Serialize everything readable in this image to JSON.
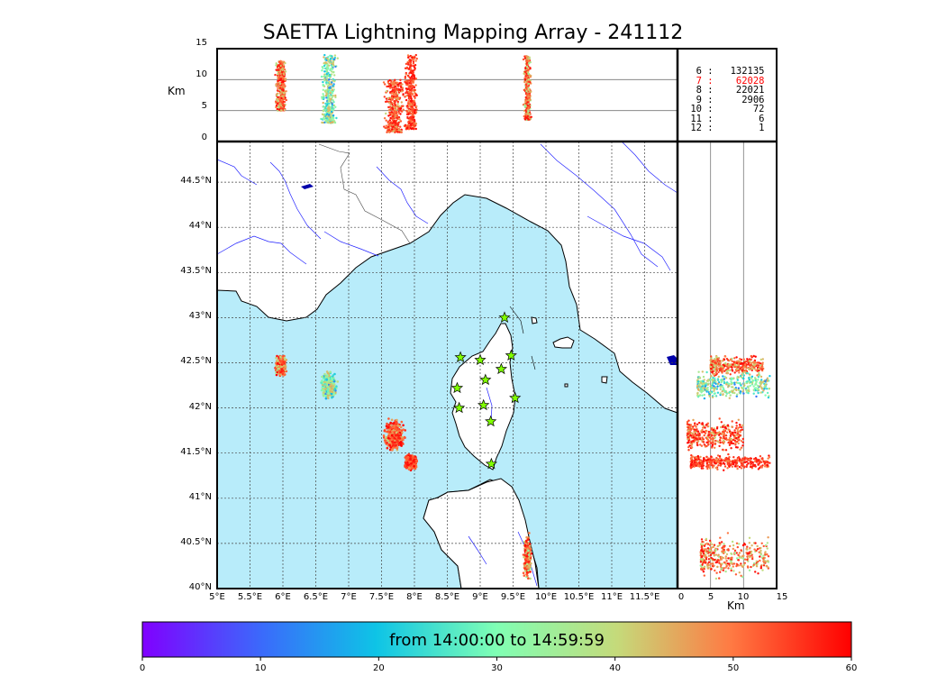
{
  "title": "SAETTA Lightning Mapping Array - 241112",
  "altitude_axis": {
    "label": "Km",
    "ticks": [
      "0",
      "5",
      "10",
      "15"
    ],
    "range": [
      0,
      15
    ]
  },
  "side_axis": {
    "label": "Km",
    "ticks": [
      "0",
      "5",
      "10",
      "15"
    ],
    "range": [
      0,
      15
    ]
  },
  "lat_axis": {
    "ticks": [
      "40°N",
      "40.5°N",
      "41°N",
      "41.5°N",
      "42°N",
      "42.5°N",
      "43°N",
      "43.5°N",
      "44°N",
      "44.5°N"
    ],
    "values": [
      40.0,
      40.5,
      41.0,
      41.5,
      42.0,
      42.5,
      43.0,
      43.5,
      44.0,
      44.5
    ],
    "range": [
      40.0,
      44.95
    ]
  },
  "lon_axis": {
    "ticks": [
      "5°E",
      "5.5°E",
      "6°E",
      "6.5°E",
      "7°E",
      "7.5°E",
      "8°E",
      "8.5°E",
      "9°E",
      "9.5°E",
      "10°E",
      "10.5°E",
      "11°E",
      "11.5°E"
    ],
    "values": [
      5.0,
      5.5,
      6.0,
      6.5,
      7.0,
      7.5,
      8.0,
      8.5,
      9.0,
      9.5,
      10.0,
      10.5,
      11.0,
      11.5
    ],
    "range": [
      5.0,
      12.0
    ]
  },
  "station_counts": [
    {
      "stations": "6",
      "count": "132135",
      "color": "#000000"
    },
    {
      "stations": "7",
      "count": "62028",
      "color": "#ff0000"
    },
    {
      "stations": "8",
      "count": "22021",
      "color": "#000000"
    },
    {
      "stations": "9",
      "count": "2906",
      "color": "#000000"
    },
    {
      "stations": "10",
      "count": "72",
      "color": "#000000"
    },
    {
      "stations": "11",
      "count": "6",
      "color": "#000000"
    },
    {
      "stations": "12",
      "count": "1",
      "color": "#000000"
    }
  ],
  "colorbar": {
    "label": "from 14:00:00 to 14:59:59",
    "ticks": [
      "0",
      "10",
      "20",
      "30",
      "40",
      "50",
      "60"
    ],
    "range": [
      0,
      60
    ],
    "colormap": "rainbow"
  },
  "colors": {
    "sea": "#b8ecfa",
    "coast": "#000000",
    "rivers": "#0000ff",
    "grid": "#555555",
    "station_fill": "#80ff00"
  },
  "stations": [
    {
      "lon": 9.37,
      "lat": 43.0
    },
    {
      "lon": 8.7,
      "lat": 42.56
    },
    {
      "lon": 9.0,
      "lat": 42.53
    },
    {
      "lon": 9.47,
      "lat": 42.58
    },
    {
      "lon": 9.32,
      "lat": 42.43
    },
    {
      "lon": 9.08,
      "lat": 42.31
    },
    {
      "lon": 8.65,
      "lat": 42.22
    },
    {
      "lon": 9.53,
      "lat": 42.11
    },
    {
      "lon": 8.68,
      "lat": 42.0
    },
    {
      "lon": 9.05,
      "lat": 42.03
    },
    {
      "lon": 9.16,
      "lat": 41.85
    },
    {
      "lon": 9.17,
      "lat": 41.38
    }
  ],
  "clusters": [
    {
      "lon": 5.97,
      "lat": 42.47,
      "dlon": 0.1,
      "dlat": 0.13,
      "alt_min": 5.0,
      "alt_max": 13.0,
      "t_min": 35,
      "t_max": 60
    },
    {
      "lon": 6.7,
      "lat": 42.25,
      "dlon": 0.15,
      "dlat": 0.18,
      "alt_min": 3.0,
      "alt_max": 14.0,
      "t_min": 10,
      "t_max": 45
    },
    {
      "lon": 7.7,
      "lat": 41.7,
      "dlon": 0.2,
      "dlat": 0.22,
      "alt_min": 1.5,
      "alt_max": 10.0,
      "t_min": 40,
      "t_max": 60
    },
    {
      "lon": 7.95,
      "lat": 41.4,
      "dlon": 0.12,
      "dlat": 0.1,
      "alt_min": 2.0,
      "alt_max": 14.0,
      "t_min": 45,
      "t_max": 60
    },
    {
      "lon": 9.72,
      "lat": 40.35,
      "dlon": 0.07,
      "dlat": 0.28,
      "alt_min": 3.5,
      "alt_max": 14.0,
      "t_min": 30,
      "t_max": 60
    }
  ]
}
